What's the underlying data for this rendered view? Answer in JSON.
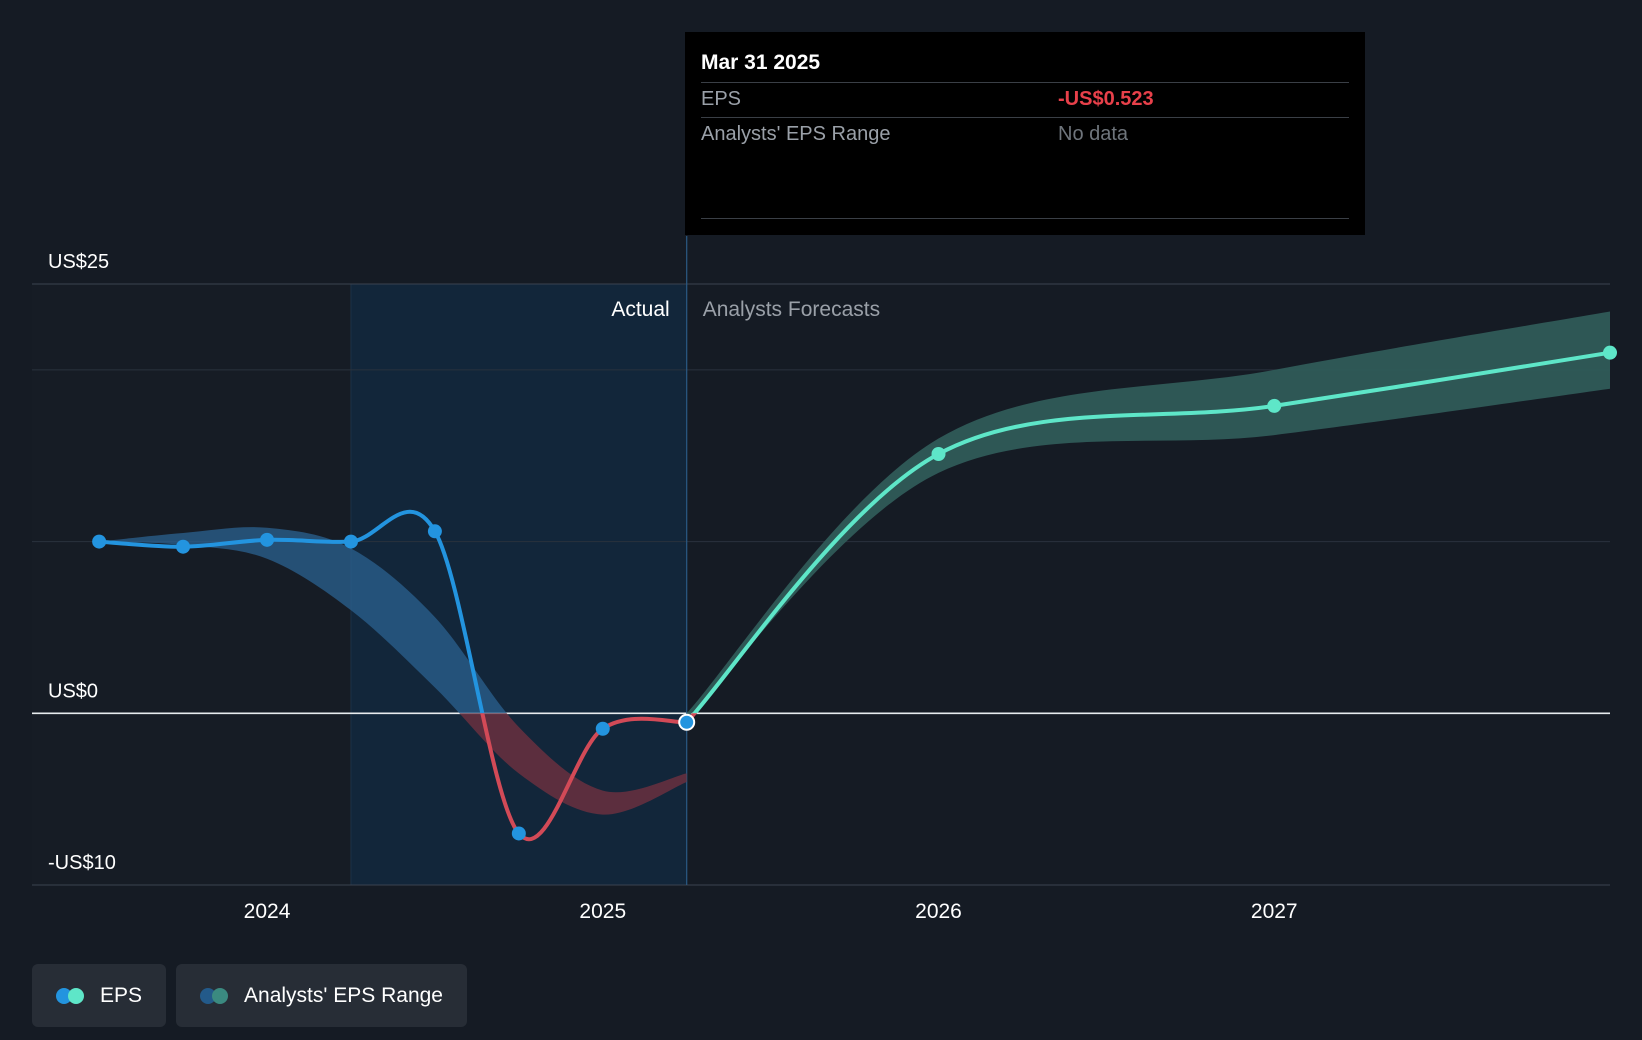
{
  "chart_data": {
    "type": "line",
    "y_ticks": [
      {
        "value": 25,
        "label": "US$25"
      },
      {
        "value": 0,
        "label": "US$0"
      },
      {
        "value": -10,
        "label": "-US$10"
      }
    ],
    "ylim": [
      -10,
      25
    ],
    "x_ticks": [
      {
        "value": 2024.0,
        "label": "2024"
      },
      {
        "value": 2025.0,
        "label": "2025"
      },
      {
        "value": 2026.0,
        "label": "2026"
      },
      {
        "value": 2027.0,
        "label": "2027"
      }
    ],
    "xlim": [
      2023.3,
      2028.0
    ],
    "actual_region_label": "Actual",
    "forecast_region_label": "Analysts Forecasts",
    "highlight_start": 2024.25,
    "present": 2025.25,
    "series": [
      {
        "name": "EPS",
        "kind": "actual",
        "points": [
          [
            2023.5,
            10.0
          ],
          [
            2023.75,
            9.7
          ],
          [
            2024.0,
            10.1
          ],
          [
            2024.25,
            10.0
          ],
          [
            2024.5,
            10.6
          ],
          [
            2024.75,
            -7.0
          ],
          [
            2025.0,
            -0.9
          ],
          [
            2025.25,
            -0.523
          ]
        ]
      },
      {
        "name": "EPS",
        "kind": "forecast",
        "points": [
          [
            2025.25,
            -0.523
          ],
          [
            2026.0,
            15.1
          ],
          [
            2027.0,
            17.9
          ],
          [
            2028.0,
            21.0
          ]
        ]
      }
    ],
    "ranges": [
      {
        "name": "Analysts' EPS Range",
        "kind": "actual",
        "x": [
          2023.5,
          2023.75,
          2024.0,
          2024.25,
          2024.5,
          2024.75,
          2025.0,
          2025.25
        ],
        "low": [
          10.0,
          9.8,
          9.0,
          6.0,
          1.5,
          -3.5,
          -5.9,
          -4.0
        ],
        "high": [
          10.0,
          10.5,
          10.8,
          9.6,
          5.6,
          -0.8,
          -4.5,
          -3.5
        ]
      },
      {
        "name": "Analysts' EPS Range",
        "kind": "forecast",
        "x": [
          2025.25,
          2026.0,
          2027.0,
          2028.0
        ],
        "low": [
          -0.3,
          14.0,
          16.2,
          18.9
        ],
        "high": [
          0.0,
          16.0,
          20.0,
          23.4
        ]
      }
    ]
  },
  "tooltip": {
    "date": "Mar 31 2025",
    "eps_label": "EPS",
    "eps_value": "-US$0.523",
    "range_label": "Analysts' EPS Range",
    "range_value": "No data"
  },
  "legend": [
    {
      "label": "EPS",
      "colors": [
        "#2394df",
        "#5ee6c8"
      ]
    },
    {
      "label": "Analysts' EPS Range",
      "colors": [
        "#235a8a",
        "#3b8a80"
      ]
    }
  ],
  "colors": {
    "background": "#151b24",
    "eps_positive": "#2394df",
    "eps_negative": "#d24a57",
    "forecast": "#5ee6c8",
    "range_actual": "#2b6190",
    "range_negative": "#6a3040",
    "range_forecast": "#2f5b58",
    "highlight": "#12263a"
  }
}
